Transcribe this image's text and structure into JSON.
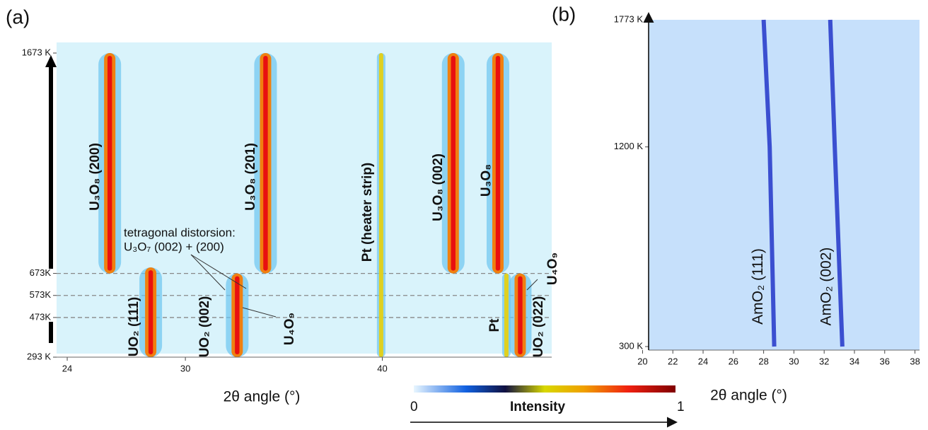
{
  "chart_data": [
    {
      "type": "trace",
      "panel_label": "(a)",
      "x_label": "2θ angle (°)",
      "xlim": [
        23.46,
        48.6
      ],
      "xticks": [
        24,
        30,
        40
      ],
      "ylim": [
        293,
        1673
      ],
      "yticks": [
        {
          "value": 293,
          "label": "293 K"
        },
        {
          "value": 473,
          "label": "473K"
        },
        {
          "value": 573,
          "label": "573K"
        },
        {
          "value": 673,
          "label": "673K"
        },
        {
          "value": 1673,
          "label": "1673 K"
        }
      ],
      "dashed_levels": [
        473,
        573,
        673
      ],
      "series": [
        {
          "name": "U₃O₈ (200)",
          "x": 26.16,
          "values": [
            673,
            1673
          ]
        },
        {
          "name": "UO₂ (111)",
          "x": 28.24,
          "values": [
            293,
            700
          ]
        },
        {
          "name": "UO₂ (002)",
          "x": 32.63,
          "values": [
            293,
            673
          ]
        },
        {
          "name": "U₃O₈ (201)",
          "x": 34.07,
          "values": [
            673,
            1673
          ]
        },
        {
          "name": "Pt (heater strip)",
          "x": 39.94,
          "values": [
            293,
            1673
          ]
        },
        {
          "name": "U₃O₈ (002)",
          "x": 43.6,
          "values": [
            673,
            1673
          ]
        },
        {
          "name": "U₃O₈",
          "x": 45.87,
          "values": [
            673,
            1673
          ]
        },
        {
          "name": "Pt",
          "x": 46.3,
          "values": [
            293,
            673
          ]
        },
        {
          "name": "UO₂ (022)",
          "x": 47.0,
          "values": [
            293,
            673
          ]
        }
      ],
      "annotations": [
        "tetragonal distorsion:",
        "U₃O₇ (002) + (200)",
        "U₄O₉",
        "U₄O₉"
      ],
      "colorbar": {
        "min_label": "0",
        "max_label": "1",
        "label": "Intensity"
      }
    },
    {
      "type": "line",
      "panel_label": "(b)",
      "x_label": "2θ angle (°)",
      "xlim": [
        20.4,
        38.3
      ],
      "xticks": [
        20,
        22,
        24,
        26,
        28,
        30,
        32,
        34,
        36,
        38
      ],
      "ylim": [
        300,
        1773
      ],
      "yticks": [
        {
          "value": 300,
          "label": "300 K"
        },
        {
          "value": 1200,
          "label": "1200 K"
        },
        {
          "value": 1773,
          "label": "1773 K"
        }
      ],
      "series": [
        {
          "name": "AmO₂ (111)",
          "color": "#3b4fd0",
          "x": [
            28.7,
            28.4,
            28.0
          ],
          "values": [
            300,
            1200,
            1773
          ]
        },
        {
          "name": "AmO₂ (002)",
          "color": "#3b4fd0",
          "x": [
            33.2,
            32.7,
            32.4
          ],
          "values": [
            300,
            1200,
            1773
          ]
        }
      ]
    }
  ]
}
